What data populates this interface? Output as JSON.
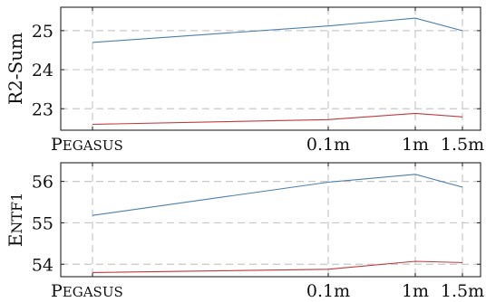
{
  "chart_data": [
    {
      "type": "line",
      "ylabel": "R2-Sum",
      "categories": [
        "PEGASUS",
        "0.1m",
        "1m",
        "1.5m"
      ],
      "x": [
        0,
        0.1,
        1,
        1.5
      ],
      "yticks": [
        23,
        24,
        25
      ],
      "ylim": [
        22.45,
        25.6
      ],
      "grid": true,
      "series": [
        {
          "color": "#4a7fb0",
          "values": [
            24.7,
            25.12,
            25.32,
            25.0
          ]
        },
        {
          "color": "#c0393c",
          "values": [
            22.6,
            22.72,
            22.88,
            22.79
          ]
        }
      ]
    },
    {
      "type": "line",
      "ylabel": "ENTF1",
      "categories": [
        "PEGASUS",
        "0.1m",
        "1m",
        "1.5m"
      ],
      "x": [
        0,
        0.1,
        1,
        1.5
      ],
      "yticks": [
        54,
        55,
        56
      ],
      "ylim": [
        53.7,
        56.45
      ],
      "grid": true,
      "series": [
        {
          "color": "#4a7fb0",
          "values": [
            55.18,
            55.98,
            56.17,
            55.86
          ]
        },
        {
          "color": "#c0393c",
          "values": [
            53.8,
            53.88,
            54.07,
            54.04
          ]
        }
      ]
    }
  ]
}
